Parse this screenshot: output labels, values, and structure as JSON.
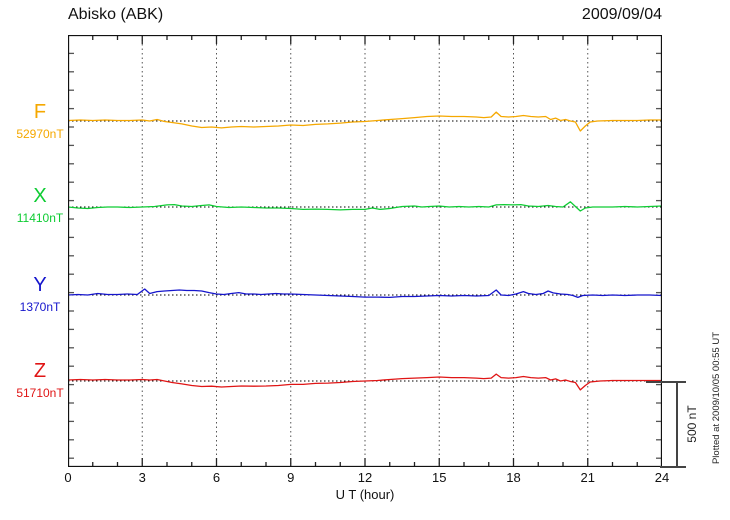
{
  "header": {
    "title": "Abisko (ABK)",
    "date": "2009/09/04"
  },
  "scale_bar": {
    "label": "500 nT",
    "nT": 500
  },
  "footer": {
    "note": "Plotted at 2009/10/05 00:55 UT"
  },
  "chart_data": {
    "type": "line",
    "title": "Abisko (ABK)",
    "date": "2009/09/04",
    "xlabel": "U T (hour)",
    "x_range": [
      0,
      24
    ],
    "x_ticks": [
      0,
      3,
      6,
      9,
      12,
      15,
      18,
      21,
      24
    ],
    "x_minor_step_hours": 1,
    "grid": "vertical-dotted-every-3h",
    "scale_bar_nT": 500,
    "series": [
      {
        "name": "F",
        "base": "52970nT",
        "color": "#F5A800",
        "units": "nT offset from baseline",
        "points": [
          [
            0,
            3
          ],
          [
            0.5,
            6
          ],
          [
            1,
            3
          ],
          [
            1.5,
            6
          ],
          [
            2,
            3
          ],
          [
            2.5,
            3
          ],
          [
            3,
            6
          ],
          [
            3.3,
            0
          ],
          [
            3.6,
            9
          ],
          [
            3.9,
            -3
          ],
          [
            4.2,
            -9
          ],
          [
            4.6,
            -17
          ],
          [
            5,
            -29
          ],
          [
            5.4,
            -38
          ],
          [
            5.8,
            -35
          ],
          [
            6.2,
            -40
          ],
          [
            6.6,
            -35
          ],
          [
            7,
            -32
          ],
          [
            7.5,
            -35
          ],
          [
            8,
            -32
          ],
          [
            8.5,
            -29
          ],
          [
            9,
            -23
          ],
          [
            9.5,
            -26
          ],
          [
            10,
            -20
          ],
          [
            10.5,
            -17
          ],
          [
            11,
            -12
          ],
          [
            11.5,
            -6
          ],
          [
            12,
            -3
          ],
          [
            12.5,
            3
          ],
          [
            13,
            9
          ],
          [
            13.5,
            14
          ],
          [
            14,
            20
          ],
          [
            14.5,
            26
          ],
          [
            15,
            29
          ],
          [
            15.5,
            26
          ],
          [
            16,
            26
          ],
          [
            16.5,
            23
          ],
          [
            16.8,
            20
          ],
          [
            17.1,
            23
          ],
          [
            17.3,
            52
          ],
          [
            17.5,
            26
          ],
          [
            17.8,
            23
          ],
          [
            18.1,
            26
          ],
          [
            18.4,
            32
          ],
          [
            18.7,
            26
          ],
          [
            19,
            23
          ],
          [
            19.3,
            26
          ],
          [
            19.5,
            9
          ],
          [
            19.7,
            17
          ],
          [
            19.9,
            3
          ],
          [
            20.1,
            9
          ],
          [
            20.3,
            0
          ],
          [
            20.5,
            -6
          ],
          [
            20.7,
            -58
          ],
          [
            20.9,
            -29
          ],
          [
            21.1,
            -6
          ],
          [
            21.4,
            0
          ],
          [
            22,
            3
          ],
          [
            22.5,
            3
          ],
          [
            23,
            3
          ],
          [
            23.5,
            6
          ],
          [
            24,
            6
          ]
        ]
      },
      {
        "name": "X",
        "base": "11410nT",
        "color": "#0ECC33",
        "units": "nT offset from baseline",
        "points": [
          [
            0,
            0
          ],
          [
            0.4,
            -6
          ],
          [
            0.8,
            -9
          ],
          [
            1.2,
            -3
          ],
          [
            1.6,
            0
          ],
          [
            2,
            0
          ],
          [
            2.5,
            -3
          ],
          [
            3,
            0
          ],
          [
            3.5,
            3
          ],
          [
            4,
            12
          ],
          [
            4.3,
            14
          ],
          [
            4.6,
            6
          ],
          [
            5,
            3
          ],
          [
            5.4,
            9
          ],
          [
            5.7,
            12
          ],
          [
            6,
            3
          ],
          [
            6.5,
            -3
          ],
          [
            7,
            0
          ],
          [
            7.5,
            -3
          ],
          [
            8,
            -6
          ],
          [
            8.5,
            -6
          ],
          [
            9,
            -9
          ],
          [
            9.5,
            -14
          ],
          [
            10,
            -12
          ],
          [
            10.5,
            -14
          ],
          [
            11,
            -17
          ],
          [
            11.5,
            -14
          ],
          [
            12,
            -14
          ],
          [
            12.3,
            -6
          ],
          [
            12.6,
            -14
          ],
          [
            13,
            -9
          ],
          [
            13.5,
            3
          ],
          [
            14,
            6
          ],
          [
            14.3,
            0
          ],
          [
            14.6,
            3
          ],
          [
            15,
            6
          ],
          [
            15.4,
            0
          ],
          [
            15.8,
            3
          ],
          [
            16.2,
            0
          ],
          [
            16.6,
            3
          ],
          [
            17,
            0
          ],
          [
            17.3,
            12
          ],
          [
            17.6,
            14
          ],
          [
            18,
            12
          ],
          [
            18.3,
            14
          ],
          [
            18.6,
            6
          ],
          [
            19,
            3
          ],
          [
            19.4,
            9
          ],
          [
            19.7,
            3
          ],
          [
            20,
            0
          ],
          [
            20.3,
            30
          ],
          [
            20.5,
            3
          ],
          [
            20.7,
            -23
          ],
          [
            20.9,
            -6
          ],
          [
            21.2,
            0
          ],
          [
            22,
            0
          ],
          [
            22.5,
            3
          ],
          [
            23,
            0
          ],
          [
            23.5,
            3
          ],
          [
            24,
            6
          ]
        ]
      },
      {
        "name": "Y",
        "base": "1370nT",
        "color": "#1515CC",
        "units": "nT offset from baseline",
        "points": [
          [
            0,
            0
          ],
          [
            0.4,
            3
          ],
          [
            0.8,
            0
          ],
          [
            1.2,
            9
          ],
          [
            1.6,
            3
          ],
          [
            2,
            3
          ],
          [
            2.4,
            6
          ],
          [
            2.8,
            3
          ],
          [
            3.1,
            35
          ],
          [
            3.3,
            9
          ],
          [
            3.6,
            20
          ],
          [
            3.9,
            23
          ],
          [
            4.2,
            26
          ],
          [
            4.5,
            29
          ],
          [
            4.8,
            26
          ],
          [
            5.1,
            26
          ],
          [
            5.4,
            23
          ],
          [
            5.7,
            14
          ],
          [
            6,
            6
          ],
          [
            6.3,
            3
          ],
          [
            6.6,
            9
          ],
          [
            6.9,
            14
          ],
          [
            7.2,
            6
          ],
          [
            7.5,
            6
          ],
          [
            7.8,
            3
          ],
          [
            8.1,
            6
          ],
          [
            8.4,
            9
          ],
          [
            8.7,
            6
          ],
          [
            9,
            6
          ],
          [
            9.5,
            3
          ],
          [
            10,
            0
          ],
          [
            10.5,
            -3
          ],
          [
            11,
            -6
          ],
          [
            11.5,
            -9
          ],
          [
            12,
            -12
          ],
          [
            12.5,
            -12
          ],
          [
            13,
            -14
          ],
          [
            13.5,
            -9
          ],
          [
            14,
            -9
          ],
          [
            14.5,
            -6
          ],
          [
            15,
            -3
          ],
          [
            15.5,
            -6
          ],
          [
            16,
            -3
          ],
          [
            16.5,
            -6
          ],
          [
            17,
            -3
          ],
          [
            17.3,
            29
          ],
          [
            17.5,
            0
          ],
          [
            17.8,
            -3
          ],
          [
            18.1,
            6
          ],
          [
            18.4,
            20
          ],
          [
            18.6,
            9
          ],
          [
            18.9,
            3
          ],
          [
            19.2,
            9
          ],
          [
            19.4,
            23
          ],
          [
            19.6,
            12
          ],
          [
            19.9,
            6
          ],
          [
            20.2,
            3
          ],
          [
            20.4,
            -3
          ],
          [
            20.6,
            -14
          ],
          [
            20.8,
            -3
          ],
          [
            21.2,
            0
          ],
          [
            21.6,
            -3
          ],
          [
            22,
            0
          ],
          [
            22.5,
            -3
          ],
          [
            23,
            0
          ],
          [
            23.5,
            0
          ],
          [
            24,
            -3
          ]
        ]
      },
      {
        "name": "Z",
        "base": "51710nT",
        "color": "#E01515",
        "units": "nT offset from baseline",
        "points": [
          [
            0,
            6
          ],
          [
            0.5,
            9
          ],
          [
            1,
            6
          ],
          [
            1.5,
            9
          ],
          [
            2,
            6
          ],
          [
            2.5,
            6
          ],
          [
            3,
            9
          ],
          [
            3.3,
            6
          ],
          [
            3.6,
            9
          ],
          [
            3.9,
            0
          ],
          [
            4.2,
            -9
          ],
          [
            4.6,
            -17
          ],
          [
            5,
            -26
          ],
          [
            5.4,
            -32
          ],
          [
            5.8,
            -30
          ],
          [
            6.2,
            -35
          ],
          [
            6.6,
            -32
          ],
          [
            7,
            -29
          ],
          [
            7.5,
            -30
          ],
          [
            8,
            -29
          ],
          [
            8.5,
            -26
          ],
          [
            9,
            -20
          ],
          [
            9.5,
            -20
          ],
          [
            10,
            -14
          ],
          [
            10.5,
            -12
          ],
          [
            11,
            -9
          ],
          [
            11.5,
            -3
          ],
          [
            12,
            0
          ],
          [
            12.5,
            3
          ],
          [
            13,
            9
          ],
          [
            13.5,
            14
          ],
          [
            14,
            17
          ],
          [
            14.5,
            20
          ],
          [
            15,
            23
          ],
          [
            15.5,
            20
          ],
          [
            16,
            20
          ],
          [
            16.5,
            17
          ],
          [
            16.8,
            14
          ],
          [
            17.1,
            17
          ],
          [
            17.3,
            40
          ],
          [
            17.5,
            20
          ],
          [
            17.8,
            17
          ],
          [
            18.1,
            20
          ],
          [
            18.4,
            26
          ],
          [
            18.7,
            20
          ],
          [
            19,
            17
          ],
          [
            19.3,
            20
          ],
          [
            19.5,
            6
          ],
          [
            19.7,
            12
          ],
          [
            19.9,
            0
          ],
          [
            20.1,
            6
          ],
          [
            20.3,
            -3
          ],
          [
            20.5,
            -9
          ],
          [
            20.7,
            -52
          ],
          [
            20.9,
            -26
          ],
          [
            21.1,
            -6
          ],
          [
            21.5,
            0
          ],
          [
            22,
            3
          ],
          [
            23,
            3
          ],
          [
            24,
            3
          ]
        ]
      }
    ]
  }
}
